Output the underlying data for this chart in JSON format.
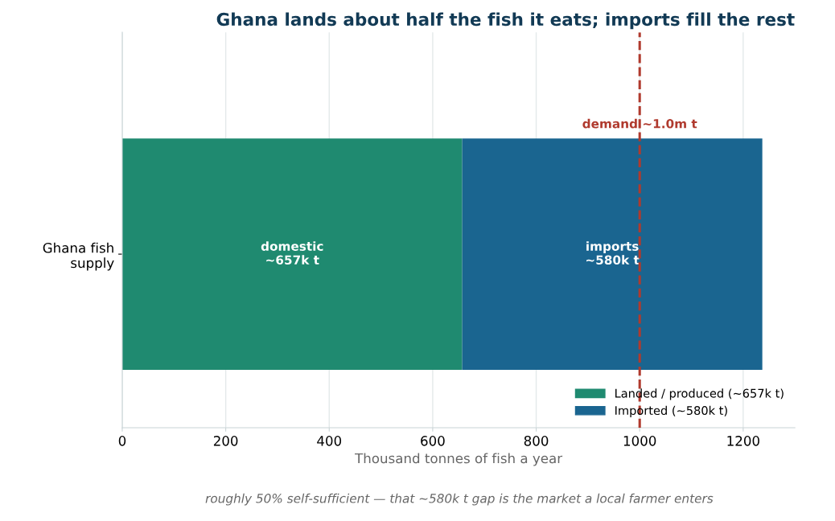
{
  "chart_data": {
    "type": "bar",
    "orientation": "horizontal",
    "stacked": true,
    "title": "Ghana lands about half the fish it eats; imports fill the rest",
    "xlabel": "Thousand tonnes of fish a year",
    "categories": [
      "Ghana fish\nsupply"
    ],
    "series": [
      {
        "name": "Landed / produced (~657k t)",
        "color": "#1f8a70",
        "values": [
          657
        ],
        "value_labels": [
          "domestic\n~657k t"
        ]
      },
      {
        "name": "Imported (~580k t)",
        "color": "#1a6590",
        "values": [
          580
        ],
        "value_labels": [
          "imports\n~580k t"
        ]
      }
    ],
    "xlim": [
      0,
      1300
    ],
    "xticks": [
      0,
      200,
      400,
      600,
      800,
      1000,
      1200
    ],
    "grid": "x",
    "legend": "bottom right",
    "ref_lines": [
      {
        "axis": "x",
        "value": 1000,
        "label": "demand ~1.0m t",
        "color": "#b03a2e",
        "line_style": "dashed"
      }
    ],
    "annotations": [
      "roughly 50% self-sufficient — that ~580k t gap is the market a local farmer enters"
    ]
  }
}
